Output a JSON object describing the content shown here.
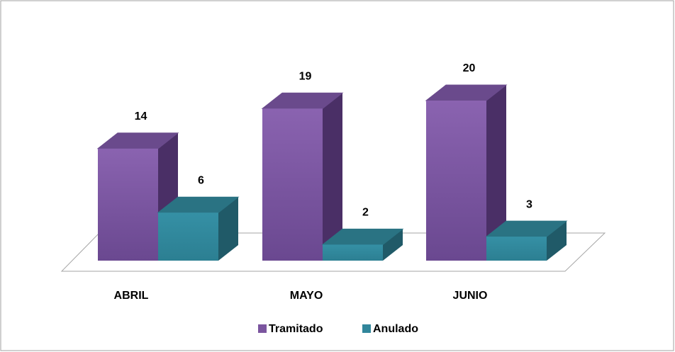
{
  "chart_data": {
    "type": "bar3d",
    "categories": [
      "ABRIL",
      "MAYO",
      "JUNIO"
    ],
    "series": [
      {
        "name": "Tramitado",
        "color": "#7b559f",
        "values": [
          14,
          19,
          20
        ]
      },
      {
        "name": "Anulado",
        "color": "#31869b",
        "values": [
          6,
          2,
          3
        ]
      }
    ],
    "legend": "bottom"
  }
}
